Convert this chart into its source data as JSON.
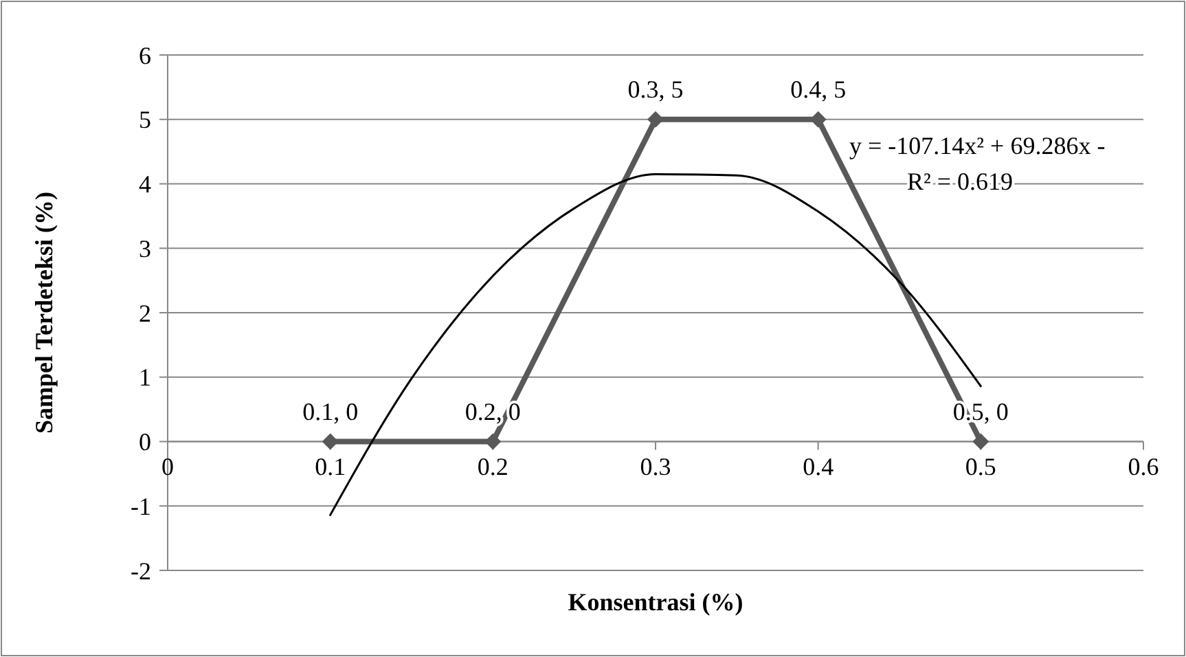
{
  "chart_data": {
    "type": "line",
    "xlabel": "Konsentrasi (%)",
    "ylabel": "Sampel Terdeteksi (%)",
    "x": [
      0.1,
      0.2,
      0.3,
      0.4,
      0.5
    ],
    "series": [
      {
        "color": "#595959",
        "values": [
          0,
          0,
          5,
          5,
          0
        ],
        "value_labels": [
          "0.1, 0",
          "0.2, 0",
          "0.3, 5",
          "0.4, 5",
          "0.5, 0"
        ]
      },
      {
        "type": "line",
        "color": "#000000",
        "marker": "none",
        "x": [
          0.1,
          0.15,
          0.2,
          0.25,
          0.3,
          0.35,
          0.4,
          0.45,
          0.5
        ],
        "values": [
          -1.14,
          0.98,
          2.57,
          3.62,
          4.15,
          4.13,
          3.57,
          2.48,
          0.86
        ]
      }
    ],
    "xlim": [
      0,
      0.6
    ],
    "xticks": [
      0,
      0.1,
      0.2,
      0.3,
      0.4,
      0.5,
      0.6
    ],
    "ylim": [
      -2,
      6
    ],
    "yticks": [
      -2,
      -1,
      0,
      1,
      2,
      3,
      4,
      5,
      6
    ],
    "grid": "y",
    "marker": "diamond",
    "annotations": [
      "y = -107.14x² + 69.286x -",
      "R² = 0.619"
    ]
  }
}
